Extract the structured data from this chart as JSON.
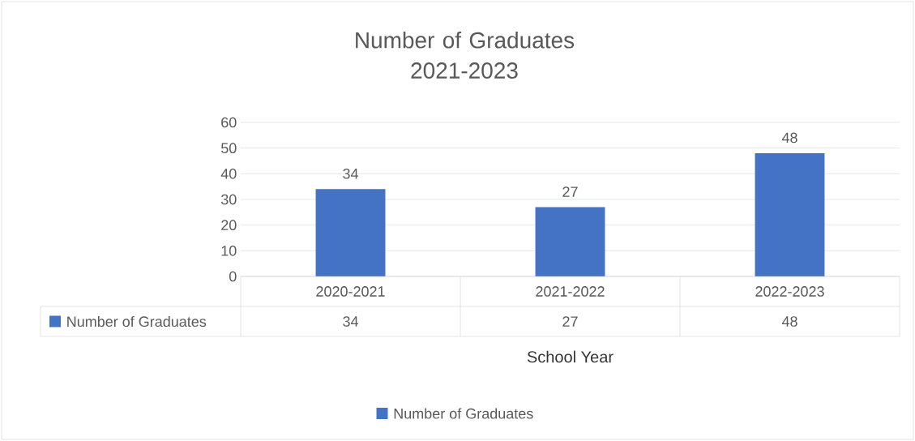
{
  "chart_data": {
    "type": "bar",
    "title": "Number of Graduates 2021-2023",
    "xlabel": "School Year",
    "categories": [
      "2020-2021",
      "2021-2022",
      "2022-2023"
    ],
    "series": [
      {
        "name": "Number of Graduates",
        "color": "#4472c4",
        "values": [
          34,
          27,
          48
        ],
        "value_labels": [
          "34",
          "27",
          "48"
        ]
      }
    ],
    "annotations": [
      "34",
      "27",
      "48"
    ],
    "ylim": [
      0,
      60
    ],
    "yticks": [
      0,
      10,
      20,
      30,
      40,
      50,
      60
    ],
    "grid": "y",
    "legend": "bottom",
    "data_labels": true
  }
}
